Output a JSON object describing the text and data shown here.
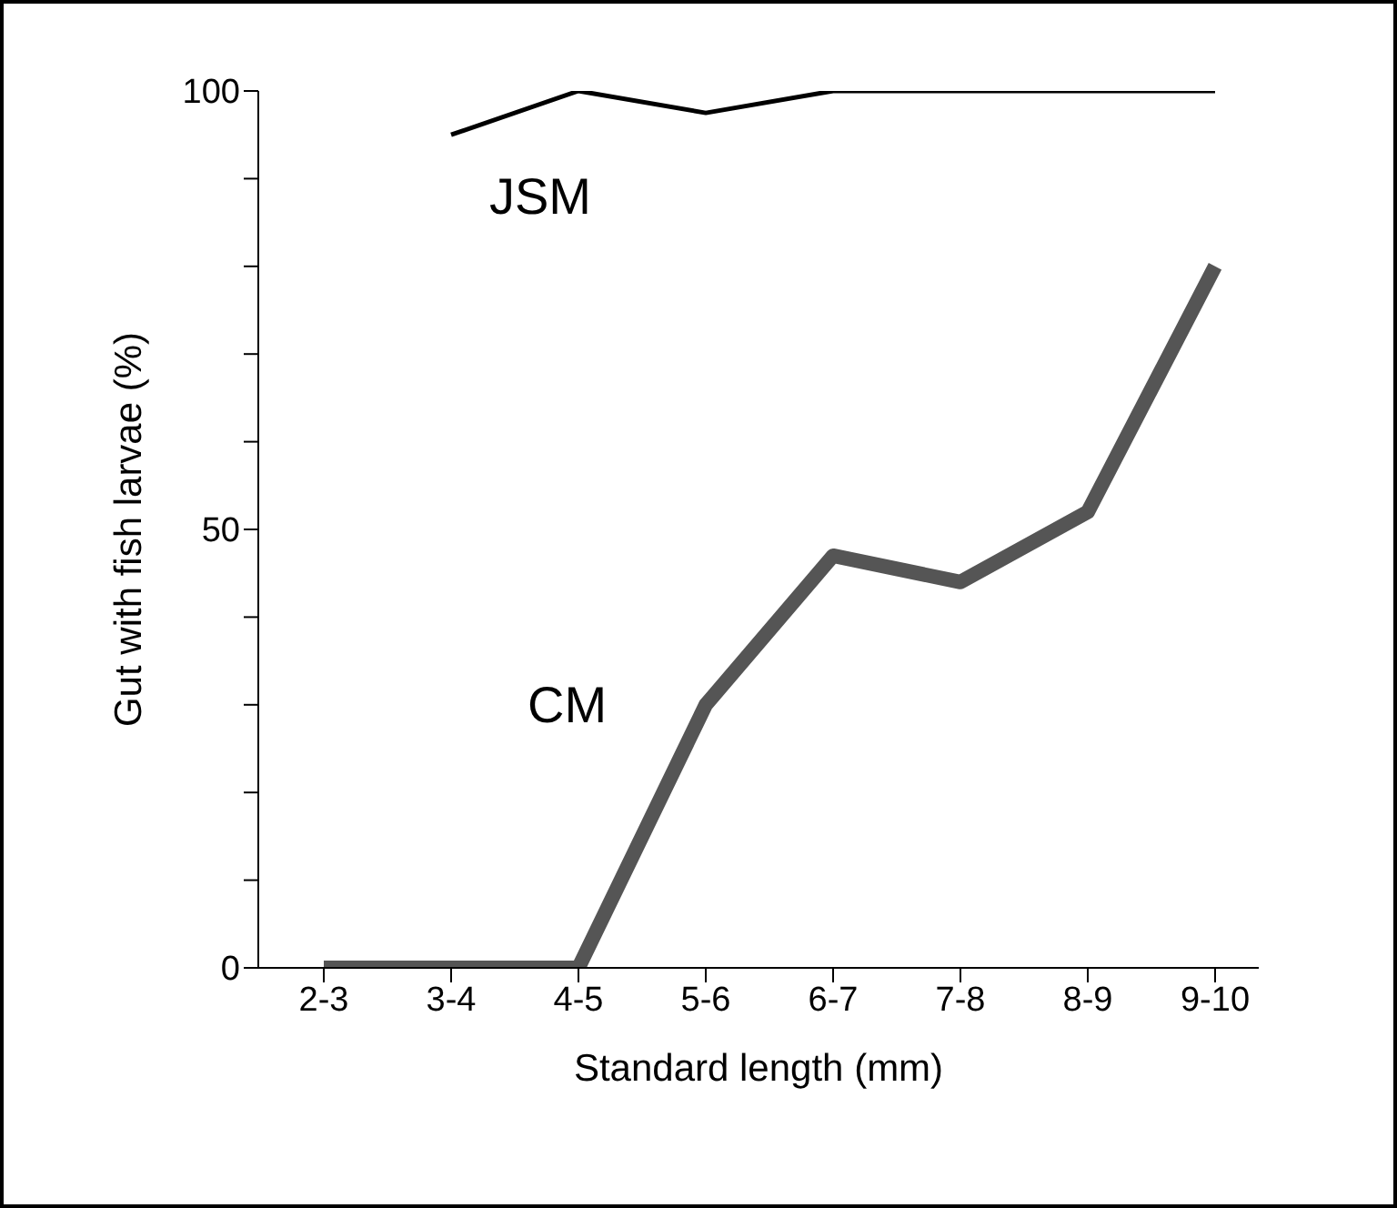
{
  "chart_data": {
    "type": "line",
    "xlabel": "Standard length (mm)",
    "ylabel": "Gut with fish larvae (%)",
    "categories": [
      "2-3",
      "3-4",
      "4-5",
      "5-6",
      "6-7",
      "7-8",
      "8-9",
      "9-10"
    ],
    "series": [
      {
        "name": "JSM",
        "color": "#000000",
        "values": [
          null,
          95,
          100,
          97.5,
          100,
          100,
          100,
          100
        ]
      },
      {
        "name": "CM",
        "color": "#555555",
        "values": [
          0,
          0,
          0,
          30,
          47,
          44,
          52,
          80
        ]
      }
    ],
    "ylim": [
      0,
      100
    ],
    "yticks": [
      0,
      {
        "value": 10,
        "label": null
      },
      {
        "value": 20,
        "label": null
      },
      {
        "value": 30,
        "label": null
      },
      {
        "value": 40,
        "label": null
      },
      50,
      {
        "value": 60,
        "label": null
      },
      {
        "value": 70,
        "label": null
      },
      {
        "value": 80,
        "label": null
      },
      {
        "value": 90,
        "label": null
      },
      100
    ],
    "grid": false,
    "legend": false,
    "marker": "none",
    "line_style": "solid"
  }
}
